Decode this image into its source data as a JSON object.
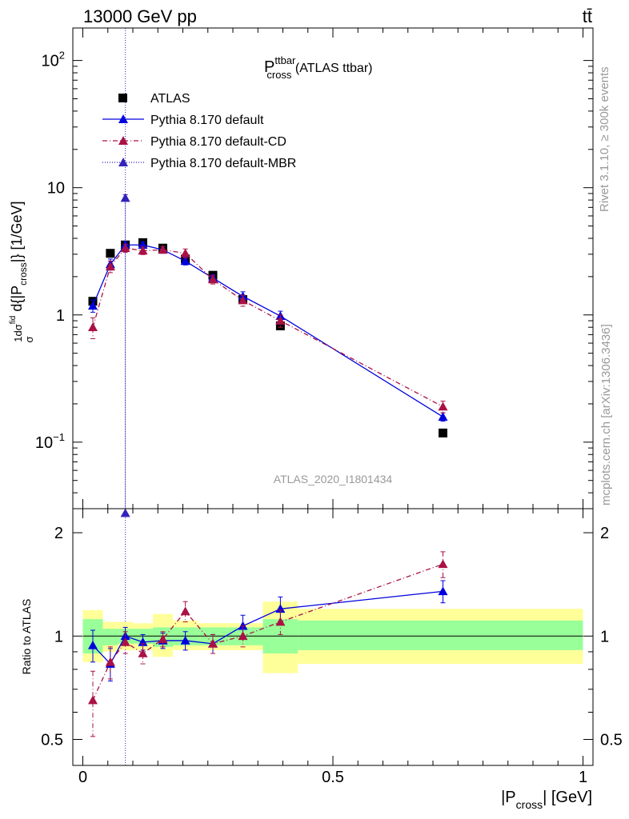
{
  "header": {
    "left": "13000 GeV pp",
    "right": "tt̄"
  },
  "side": {
    "rivet": "Rivet 3.1.10, ≥ 300k events",
    "mcplots": "mcplots.cern.ch [arXiv:1306.3436]"
  },
  "chart_data": [
    {
      "type": "scatter",
      "panel": "main",
      "title_main": "P",
      "title_sup": "ttbar",
      "title_sub": "cross",
      "title_suffix": " (ATLAS ttbar)",
      "ylabel": "1/σ dσ^{fid}/d{|P_cross|} [1/GeV]",
      "ylabel_main": "d{|P",
      "ylabel_sub": "cross",
      "ylabel_end": "|} [1/GeV]",
      "yscale": "log",
      "ylim": [
        0.03,
        180
      ],
      "xlim": [
        -0.02,
        1.02
      ],
      "yticks": [
        {
          "value": 0.1,
          "base": "10",
          "exp": "−1"
        },
        {
          "value": 1,
          "label": "1"
        },
        {
          "value": 10,
          "label": "10"
        },
        {
          "value": 100,
          "base": "10",
          "exp": "2"
        }
      ],
      "watermark": "ATLAS_2020_I1801434",
      "legend": [
        {
          "label": "ATLAS",
          "style": "square",
          "color": "#000000"
        },
        {
          "label": "Pythia 8.170 default",
          "style": "solid",
          "color": "#0000dd"
        },
        {
          "label": "Pythia 8.170 default-CD",
          "style": "dashdot",
          "color": "#aa1144"
        },
        {
          "label": "Pythia 8.170 default-MBR",
          "style": "dotted",
          "color": "#3322bb"
        }
      ],
      "series": [
        {
          "name": "ATLAS",
          "x": [
            0.02,
            0.055,
            0.085,
            0.12,
            0.16,
            0.205,
            0.26,
            0.32,
            0.395,
            0.72
          ],
          "values": [
            1.28,
            3.05,
            3.55,
            3.7,
            3.35,
            2.75,
            2.05,
            1.32,
            0.82,
            0.118
          ]
        },
        {
          "name": "Pythia 8.170 default",
          "x": [
            0.02,
            0.055,
            0.085,
            0.12,
            0.16,
            0.205,
            0.26,
            0.32,
            0.395,
            0.72
          ],
          "values": [
            1.18,
            2.5,
            3.55,
            3.55,
            3.25,
            2.65,
            1.95,
            1.4,
            0.98,
            0.158
          ],
          "err": [
            0.13,
            0.25,
            0.22,
            0.2,
            0.18,
            0.18,
            0.12,
            0.12,
            0.09,
            0.012
          ]
        },
        {
          "name": "Pythia 8.170 default-CD",
          "x": [
            0.02,
            0.055,
            0.085,
            0.12,
            0.16,
            0.205,
            0.26,
            0.32,
            0.395,
            0.72
          ],
          "values": [
            0.8,
            2.4,
            3.35,
            3.2,
            3.25,
            3.05,
            1.9,
            1.3,
            0.9,
            0.19
          ],
          "err": [
            0.15,
            0.25,
            0.25,
            0.22,
            0.2,
            0.25,
            0.15,
            0.13,
            0.1,
            0.02
          ]
        },
        {
          "name": "Pythia 8.170 default-MBR",
          "x": [
            0.085
          ],
          "values": [
            8.3
          ],
          "err_low": [
            8.29
          ],
          "err_high": [
            0.5
          ]
        }
      ]
    },
    {
      "type": "scatter",
      "panel": "ratio",
      "ylabel": "Ratio to ATLAS",
      "yscale": "log",
      "ylim": [
        0.42,
        2.35
      ],
      "xlabel_main": "|P",
      "xlabel_sub": "cross",
      "xlabel_end": "| [GeV]",
      "xticks": [
        {
          "value": 0,
          "label": "0"
        },
        {
          "value": 0.5,
          "label": "0.5"
        },
        {
          "value": 1,
          "label": "1"
        }
      ],
      "yticks": [
        {
          "value": 0.5,
          "label": "0.5"
        },
        {
          "value": 1,
          "label": "1"
        },
        {
          "value": 2,
          "label": "2"
        }
      ],
      "bands": [
        {
          "x0": 0.0,
          "x1": 0.04,
          "stat_lo": 0.89,
          "stat_hi": 1.12,
          "tot_lo": 0.84,
          "tot_hi": 1.19
        },
        {
          "x0": 0.04,
          "x1": 0.07,
          "stat_lo": 0.94,
          "stat_hi": 1.05,
          "tot_lo": 0.9,
          "tot_hi": 1.1
        },
        {
          "x0": 0.07,
          "x1": 0.1,
          "stat_lo": 0.95,
          "stat_hi": 1.05,
          "tot_lo": 0.91,
          "tot_hi": 1.1
        },
        {
          "x0": 0.1,
          "x1": 0.14,
          "stat_lo": 0.95,
          "stat_hi": 1.05,
          "tot_lo": 0.91,
          "tot_hi": 1.09
        },
        {
          "x0": 0.14,
          "x1": 0.18,
          "stat_lo": 0.93,
          "stat_hi": 1.06,
          "tot_lo": 0.87,
          "tot_hi": 1.16
        },
        {
          "x0": 0.18,
          "x1": 0.23,
          "stat_lo": 0.94,
          "stat_hi": 1.06,
          "tot_lo": 0.91,
          "tot_hi": 1.11
        },
        {
          "x0": 0.23,
          "x1": 0.29,
          "stat_lo": 0.94,
          "stat_hi": 1.06,
          "tot_lo": 0.91,
          "tot_hi": 1.09
        },
        {
          "x0": 0.29,
          "x1": 0.36,
          "stat_lo": 0.94,
          "stat_hi": 1.06,
          "tot_lo": 0.91,
          "tot_hi": 1.09
        },
        {
          "x0": 0.36,
          "x1": 0.43,
          "stat_lo": 0.89,
          "stat_hi": 1.12,
          "tot_lo": 0.78,
          "tot_hi": 1.26
        },
        {
          "x0": 0.43,
          "x1": 1.0,
          "stat_lo": 0.91,
          "stat_hi": 1.11,
          "tot_lo": 0.83,
          "tot_hi": 1.2
        }
      ],
      "series": [
        {
          "name": "Pythia 8.170 default",
          "x": [
            0.02,
            0.055,
            0.085,
            0.12,
            0.16,
            0.205,
            0.26,
            0.32,
            0.395,
            0.72
          ],
          "values": [
            0.94,
            0.83,
            1.0,
            0.96,
            0.97,
            0.97,
            0.95,
            1.07,
            1.2,
            1.35
          ],
          "err": [
            0.1,
            0.09,
            0.06,
            0.05,
            0.05,
            0.06,
            0.06,
            0.08,
            0.1,
            0.1
          ]
        },
        {
          "name": "Pythia 8.170 default-CD",
          "x": [
            0.02,
            0.055,
            0.085,
            0.12,
            0.16,
            0.205,
            0.26,
            0.32,
            0.395,
            0.72
          ],
          "values": [
            0.65,
            0.84,
            0.96,
            0.89,
            0.98,
            1.18,
            0.95,
            1.0,
            1.1,
            1.62
          ],
          "err": [
            0.14,
            0.09,
            0.07,
            0.06,
            0.05,
            0.08,
            0.06,
            0.07,
            0.09,
            0.14
          ]
        },
        {
          "name": "Pythia 8.170 default-MBR",
          "x": [
            0.085
          ],
          "values": [
            2.28
          ],
          "clip_bottom": true
        }
      ]
    }
  ]
}
